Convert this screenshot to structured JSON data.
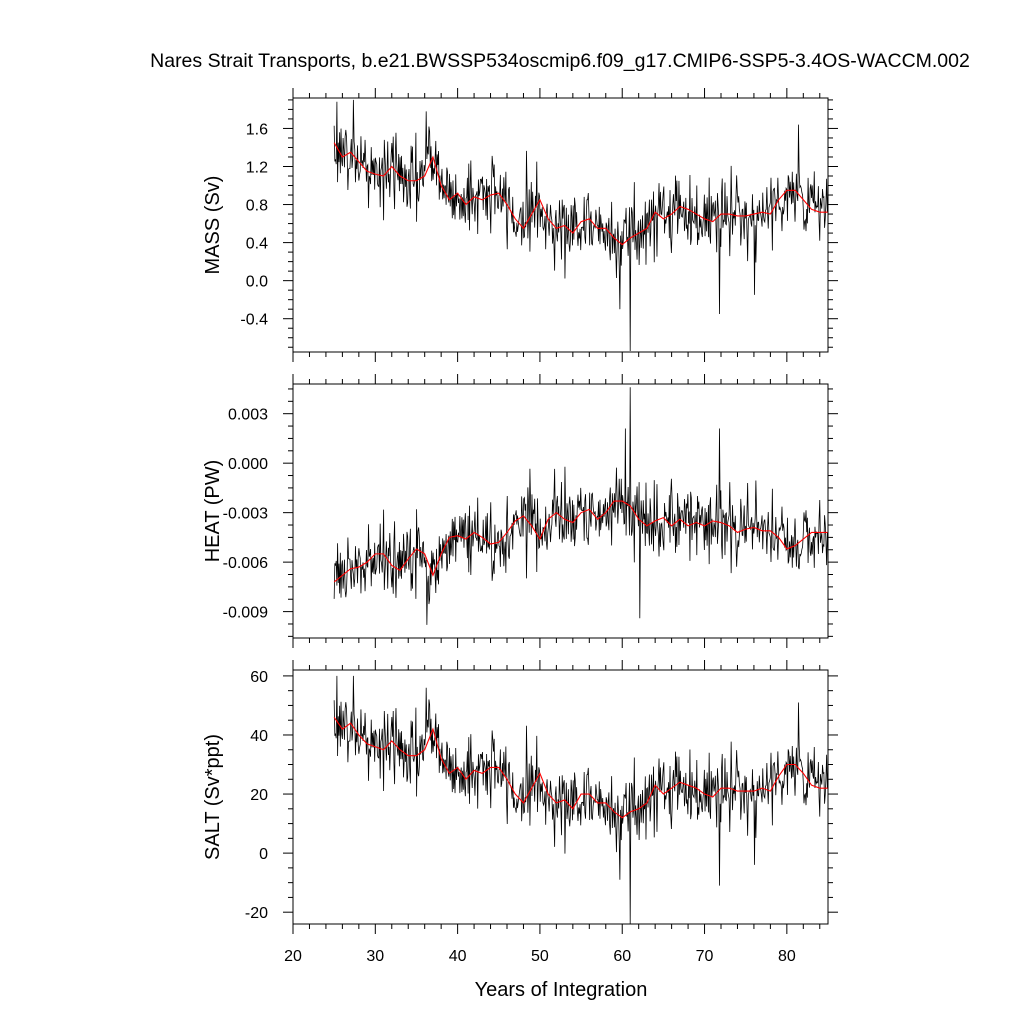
{
  "title": "Nares Strait Transports, b.e21.BWSSP534oscmip6.f09_g17.CMIP6-SSP5-3.4OS-WACCM.002",
  "xlabel": "Years of Integration",
  "x_ticks": [
    20,
    30,
    40,
    50,
    60,
    70,
    80
  ],
  "colors": {
    "raw": "#000000",
    "smooth": "#ff0000",
    "axis": "#000000"
  },
  "chart_data": [
    {
      "type": "line",
      "ylabel": "MASS (Sv)",
      "xlim": [
        20,
        85
      ],
      "ylim": [
        -0.75,
        1.92
      ],
      "yticks": [
        -0.4,
        0.0,
        0.4,
        0.8,
        1.2,
        1.6
      ],
      "ytick_labels": [
        "-0.4",
        "0.0",
        "0.4",
        "0.8",
        "1.2",
        "1.6"
      ],
      "x_start": 25.0,
      "x_end": 85.0,
      "monthly_samples": 720,
      "series": [
        {
          "x": [
            25.0,
            26.5,
            28.0,
            29.5,
            31.0,
            32.5,
            34.0,
            35.5,
            37.0,
            38.5,
            40.0,
            41.5,
            43.0,
            44.5,
            46.0,
            47.5,
            49.0,
            50.5,
            52.0,
            53.5,
            55.0,
            56.5,
            58.0,
            59.5,
            61.0,
            62.5,
            64.0,
            65.5,
            67.0,
            68.5,
            70.0,
            71.5,
            73.0,
            74.5,
            76.0,
            77.5,
            79.0,
            80.5,
            82.0,
            83.5,
            85.0
          ],
          "values": [
            1.45,
            1.3,
            1.25,
            1.15,
            1.1,
            1.18,
            1.05,
            1.08,
            1.3,
            0.95,
            0.85,
            0.88,
            0.9,
            0.92,
            0.8,
            0.6,
            0.85,
            0.62,
            0.6,
            0.55,
            0.62,
            0.58,
            0.55,
            0.42,
            0.5,
            0.55,
            0.68,
            0.72,
            0.75,
            0.7,
            0.65,
            0.68,
            0.72,
            0.7,
            0.68,
            0.72,
            0.85,
            0.95,
            0.85,
            0.78,
            0.72
          ]
        },
        {
          "name": "smoothed",
          "x": [
            25.0,
            26.0,
            27.0,
            28.0,
            29.0,
            30.0,
            31.0,
            32.0,
            33.0,
            34.0,
            35.0,
            36.0,
            37.0,
            38.0,
            39.0,
            40.0,
            41.0,
            42.0,
            43.0,
            44.0,
            45.0,
            46.0,
            47.0,
            48.0,
            49.0,
            50.0,
            51.0,
            52.0,
            53.0,
            54.0,
            55.0,
            56.0,
            57.0,
            58.0,
            59.0,
            60.0,
            61.0,
            62.0,
            63.0,
            64.0,
            65.0,
            66.0,
            67.0,
            68.0,
            69.0,
            70.0,
            71.0,
            72.0,
            73.0,
            74.0,
            75.0,
            76.0,
            77.0,
            78.0,
            79.0,
            80.0,
            81.0,
            82.0,
            83.0,
            84.0,
            85.0
          ],
          "values": [
            1.45,
            1.3,
            1.35,
            1.25,
            1.15,
            1.12,
            1.1,
            1.2,
            1.1,
            1.05,
            1.05,
            1.1,
            1.3,
            1.0,
            0.85,
            0.92,
            0.8,
            0.88,
            0.85,
            0.9,
            0.92,
            0.8,
            0.65,
            0.55,
            0.7,
            0.85,
            0.65,
            0.55,
            0.58,
            0.5,
            0.62,
            0.65,
            0.55,
            0.55,
            0.45,
            0.38,
            0.45,
            0.5,
            0.55,
            0.72,
            0.65,
            0.7,
            0.78,
            0.75,
            0.7,
            0.65,
            0.62,
            0.7,
            0.7,
            0.68,
            0.68,
            0.7,
            0.72,
            0.7,
            0.85,
            0.95,
            0.95,
            0.85,
            0.75,
            0.72,
            0.72
          ]
        }
      ],
      "spikes": [
        [
          25.3,
          1.88
        ],
        [
          27.3,
          1.9
        ],
        [
          36.2,
          1.78
        ],
        [
          59.7,
          -0.3
        ],
        [
          61.0,
          -0.74
        ],
        [
          71.8,
          -0.35
        ],
        [
          76.1,
          -0.15
        ],
        [
          81.4,
          1.64
        ]
      ]
    },
    {
      "type": "line",
      "ylabel": "HEAT (PW)",
      "xlim": [
        20,
        85
      ],
      "ylim": [
        -0.0106,
        0.0048
      ],
      "yticks": [
        -0.009,
        -0.006,
        -0.003,
        0.0,
        0.003
      ],
      "ytick_labels": [
        "-0.009",
        "-0.006",
        "-0.003",
        "0.000",
        "0.003"
      ],
      "x_start": 25.0,
      "x_end": 85.0,
      "monthly_samples": 720,
      "series": [
        {
          "x": [
            25.0,
            26.5,
            28.0,
            29.5,
            31.0,
            32.5,
            34.0,
            35.5,
            37.0,
            38.5,
            40.0,
            41.5,
            43.0,
            44.5,
            46.0,
            47.5,
            49.0,
            50.5,
            52.0,
            53.5,
            55.0,
            56.5,
            58.0,
            59.5,
            61.0,
            62.5,
            64.0,
            65.5,
            67.0,
            68.5,
            70.0,
            71.5,
            73.0,
            74.5,
            76.0,
            77.5,
            79.0,
            80.5,
            82.0,
            83.5,
            85.0
          ],
          "values": [
            -0.0072,
            -0.0065,
            -0.0063,
            -0.006,
            -0.0055,
            -0.006,
            -0.0058,
            -0.0052,
            -0.0068,
            -0.0052,
            -0.0044,
            -0.0046,
            -0.0043,
            -0.005,
            -0.0047,
            -0.0037,
            -0.0032,
            -0.0045,
            -0.003,
            -0.0035,
            -0.0032,
            -0.003,
            -0.0035,
            -0.0025,
            -0.0028,
            -0.0035,
            -0.0038,
            -0.0036,
            -0.0032,
            -0.0037,
            -0.0038,
            -0.0035,
            -0.0038,
            -0.0041,
            -0.0039,
            -0.004,
            -0.0045,
            -0.0052,
            -0.0048,
            -0.0042,
            -0.0042
          ]
        },
        {
          "name": "smoothed",
          "x": [
            25.0,
            26.0,
            27.0,
            28.0,
            29.0,
            30.0,
            31.0,
            32.0,
            33.0,
            34.0,
            35.0,
            36.0,
            37.0,
            38.0,
            39.0,
            40.0,
            41.0,
            42.0,
            43.0,
            44.0,
            45.0,
            46.0,
            47.0,
            48.0,
            49.0,
            50.0,
            51.0,
            52.0,
            53.0,
            54.0,
            55.0,
            56.0,
            57.0,
            58.0,
            59.0,
            60.0,
            61.0,
            62.0,
            63.0,
            64.0,
            65.0,
            66.0,
            67.0,
            68.0,
            69.0,
            70.0,
            71.0,
            72.0,
            73.0,
            74.0,
            75.0,
            76.0,
            77.0,
            78.0,
            79.0,
            80.0,
            81.0,
            82.0,
            83.0,
            84.0,
            85.0
          ],
          "values": [
            -0.0072,
            -0.0068,
            -0.0064,
            -0.0063,
            -0.006,
            -0.0055,
            -0.0055,
            -0.0062,
            -0.0065,
            -0.0058,
            -0.0052,
            -0.0055,
            -0.0068,
            -0.0055,
            -0.0045,
            -0.0044,
            -0.0046,
            -0.0042,
            -0.0045,
            -0.0049,
            -0.0048,
            -0.0042,
            -0.0035,
            -0.0032,
            -0.0038,
            -0.0046,
            -0.0034,
            -0.003,
            -0.0034,
            -0.0036,
            -0.003,
            -0.0028,
            -0.0034,
            -0.003,
            -0.0023,
            -0.0023,
            -0.0026,
            -0.0034,
            -0.0038,
            -0.0035,
            -0.0033,
            -0.0038,
            -0.0034,
            -0.0038,
            -0.0036,
            -0.0038,
            -0.0035,
            -0.0036,
            -0.0038,
            -0.0042,
            -0.004,
            -0.0039,
            -0.0041,
            -0.0041,
            -0.0045,
            -0.0052,
            -0.005,
            -0.0046,
            -0.0042,
            -0.0042,
            -0.0042
          ]
        }
      ],
      "spikes": [
        [
          24.9,
          -0.0106
        ],
        [
          36.3,
          -0.0098
        ],
        [
          60.4,
          0.0021
        ],
        [
          61.0,
          0.0046
        ],
        [
          62.1,
          -0.0094
        ],
        [
          71.8,
          0.0021
        ]
      ]
    },
    {
      "type": "line",
      "ylabel": "SALT (Sv*ppt)",
      "xlim": [
        20,
        85
      ],
      "ylim": [
        -24,
        62
      ],
      "yticks": [
        -20,
        0,
        20,
        40,
        60
      ],
      "ytick_labels": [
        "-20",
        "0",
        "20",
        "40",
        "60"
      ],
      "x_start": 25.0,
      "x_end": 85.0,
      "monthly_samples": 720,
      "series": [
        {
          "x": [
            25.0,
            26.5,
            28.0,
            29.5,
            31.0,
            32.5,
            34.0,
            35.5,
            37.0,
            38.5,
            40.0,
            41.5,
            43.0,
            44.5,
            46.0,
            47.5,
            49.0,
            50.5,
            52.0,
            53.5,
            55.0,
            56.5,
            58.0,
            59.5,
            61.0,
            62.5,
            64.0,
            65.5,
            67.0,
            68.5,
            70.0,
            71.5,
            73.0,
            74.5,
            76.0,
            77.5,
            79.0,
            80.5,
            82.0,
            83.5,
            85.0
          ],
          "values": [
            46,
            42,
            40,
            37,
            36,
            37,
            33,
            34,
            42,
            30,
            27,
            28,
            28,
            29,
            25,
            18,
            27,
            19,
            18,
            17,
            19,
            18,
            17,
            13,
            15,
            17,
            21,
            22,
            23,
            22,
            20,
            21,
            22,
            22,
            21,
            22,
            27,
            30,
            27,
            24,
            22
          ]
        },
        {
          "name": "smoothed",
          "x": [
            25.0,
            26.0,
            27.0,
            28.0,
            29.0,
            30.0,
            31.0,
            32.0,
            33.0,
            34.0,
            35.0,
            36.0,
            37.0,
            38.0,
            39.0,
            40.0,
            41.0,
            42.0,
            43.0,
            44.0,
            45.0,
            46.0,
            47.0,
            48.0,
            49.0,
            50.0,
            51.0,
            52.0,
            53.0,
            54.0,
            55.0,
            56.0,
            57.0,
            58.0,
            59.0,
            60.0,
            61.0,
            62.0,
            63.0,
            64.0,
            65.0,
            66.0,
            67.0,
            68.0,
            69.0,
            70.0,
            71.0,
            72.0,
            73.0,
            74.0,
            75.0,
            76.0,
            77.0,
            78.0,
            79.0,
            80.0,
            81.0,
            82.0,
            83.0,
            84.0,
            85.0
          ],
          "values": [
            46,
            42,
            44,
            40,
            37,
            36,
            35,
            38,
            35,
            33,
            33,
            35,
            42,
            32,
            27,
            29,
            25,
            28,
            27,
            29,
            29,
            25,
            20,
            17,
            22,
            27,
            20,
            17,
            18,
            15,
            20,
            20,
            17,
            17,
            14,
            12,
            14,
            15,
            17,
            23,
            20,
            22,
            24,
            23,
            22,
            20,
            19,
            22,
            22,
            21,
            21,
            21,
            22,
            21,
            26,
            30,
            30,
            27,
            23,
            22,
            22
          ]
        }
      ],
      "spikes": [
        [
          25.3,
          60
        ],
        [
          27.3,
          60
        ],
        [
          36.2,
          56
        ],
        [
          59.7,
          -9
        ],
        [
          61.0,
          -24
        ],
        [
          71.8,
          -11
        ],
        [
          76.1,
          -4
        ],
        [
          81.4,
          51
        ]
      ]
    }
  ]
}
